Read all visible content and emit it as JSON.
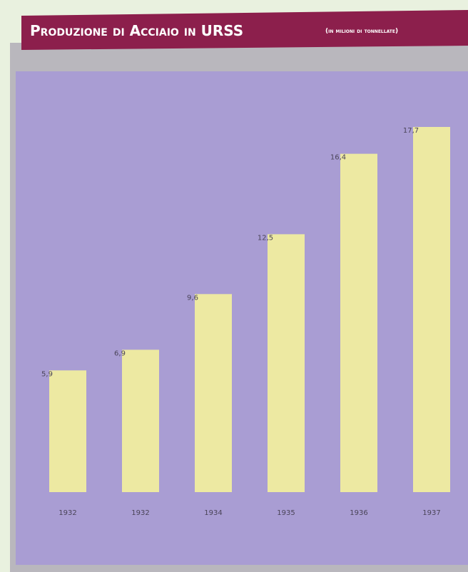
{
  "chart_data": {
    "type": "bar",
    "title": "Produzione di Acciaio in URSS",
    "subtitle": "(in milioni di tonnellate)",
    "categories": [
      "1932",
      "1932",
      "1934",
      "1935",
      "1936",
      "1937"
    ],
    "values": [
      5.9,
      6.9,
      9.6,
      12.5,
      16.4,
      17.7
    ],
    "value_labels": [
      "5,9",
      "6,9",
      "9,6",
      "12,5",
      "16,4",
      "17,7"
    ],
    "color": "#ede9a2"
  }
}
